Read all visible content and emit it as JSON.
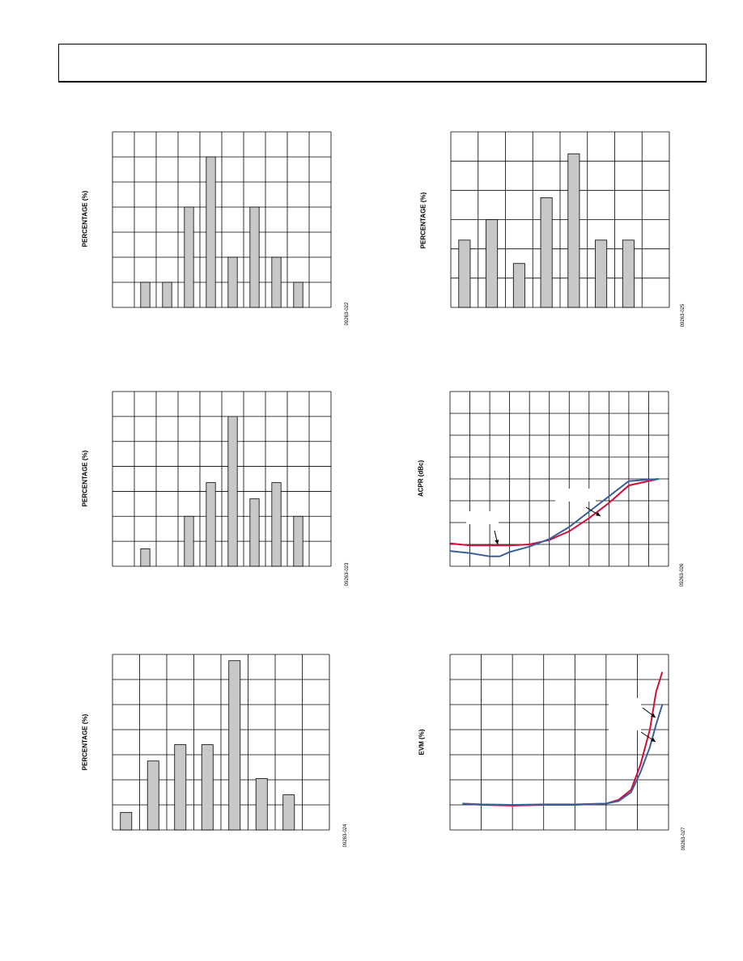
{
  "chart_data": [
    {
      "type": "bar",
      "ylabel": "PERCENTAGE (%)",
      "figure_id": "09263-022",
      "grid": true,
      "columns": 10,
      "rows": 7,
      "values": [
        0,
        1,
        1,
        4,
        6,
        2,
        4,
        2,
        1,
        0
      ],
      "ylim": [
        0,
        7
      ]
    },
    {
      "type": "bar",
      "ylabel": "PERCENTAGE (%)",
      "figure_id": "09263-025",
      "grid": true,
      "columns": 8,
      "rows": 6,
      "values": [
        2.3,
        3.0,
        1.5,
        3.75,
        5.25,
        2.3,
        2.3,
        0
      ],
      "ylim": [
        0,
        6
      ]
    },
    {
      "type": "bar",
      "ylabel": "PERCENTAGE (%)",
      "figure_id": "09263-023",
      "grid": true,
      "columns": 10,
      "rows": 7,
      "values": [
        0,
        0.7,
        0,
        2,
        3.35,
        6,
        2.7,
        3.35,
        2,
        0
      ],
      "ylim": [
        0,
        7
      ]
    },
    {
      "type": "line",
      "ylabel": "ACPR (dBc)",
      "figure_id": "09263-026",
      "grid": true,
      "columns": 11,
      "rows": 8,
      "xlim": [
        0,
        11
      ],
      "ylim": [
        0,
        8
      ],
      "series": [
        {
          "color": "#d0103a",
          "x": [
            0,
            1,
            2,
            3,
            4,
            5,
            6,
            7,
            8,
            9,
            10.5
          ],
          "y": [
            1.05,
            0.95,
            0.95,
            0.95,
            1.0,
            1.2,
            1.6,
            2.2,
            2.9,
            3.7,
            4.0
          ]
        },
        {
          "color": "#3b5f9a",
          "x": [
            0,
            1,
            2,
            2.5,
            3,
            4,
            5,
            6,
            7,
            8,
            9,
            10.5
          ],
          "y": [
            0.7,
            0.6,
            0.45,
            0.45,
            0.65,
            0.9,
            1.25,
            1.8,
            2.5,
            3.2,
            3.9,
            4.0
          ]
        }
      ],
      "annotations": [
        "arrow-left",
        "arrow-right"
      ]
    },
    {
      "type": "bar",
      "ylabel": "PERCENTAGE (%)",
      "figure_id": "09263-024",
      "grid": true,
      "columns": 8,
      "rows": 7,
      "values": [
        0.7,
        2.75,
        3.4,
        3.4,
        6.75,
        2.05,
        1.4,
        0
      ],
      "ylim": [
        0,
        7
      ]
    },
    {
      "type": "line",
      "ylabel": "EVM (%)",
      "figure_id": "09263-027",
      "grid": true,
      "columns": 7,
      "rows": 7,
      "xlim": [
        0,
        7
      ],
      "ylim": [
        0,
        7
      ],
      "series": [
        {
          "color": "#d0103a",
          "x": [
            0.4,
            1,
            2,
            3,
            4,
            5,
            5.4,
            5.8,
            6.1,
            6.4,
            6.6,
            6.8
          ],
          "y": [
            1.05,
            1.0,
            0.97,
            1.0,
            1.0,
            1.05,
            1.2,
            1.6,
            2.6,
            4.0,
            5.5,
            6.3
          ]
        },
        {
          "color": "#3b5f9a",
          "x": [
            0.4,
            1,
            2,
            3,
            4,
            5,
            5.4,
            5.8,
            6.1,
            6.4,
            6.6,
            6.8
          ],
          "y": [
            1.05,
            1.02,
            1.0,
            1.02,
            1.02,
            1.05,
            1.15,
            1.5,
            2.3,
            3.3,
            4.2,
            5.0
          ]
        }
      ],
      "annotations": [
        "arrow-upper",
        "arrow-lower"
      ]
    }
  ]
}
